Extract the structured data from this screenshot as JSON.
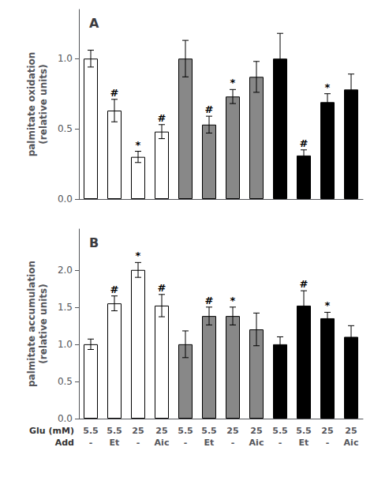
{
  "chart_data": [
    {
      "type": "bar",
      "title": "A",
      "ylabel": "palmitate oxidation\n(relative units)",
      "values": [
        1.0,
        0.63,
        0.3,
        0.48,
        1.0,
        0.53,
        0.73,
        0.87,
        1.0,
        0.31,
        0.69,
        0.78
      ],
      "errors": [
        0.06,
        0.08,
        0.04,
        0.05,
        0.13,
        0.06,
        0.05,
        0.11,
        0.18,
        0.04,
        0.06,
        0.11
      ],
      "annotations": [
        null,
        "#",
        "*",
        "#",
        null,
        "#",
        "*",
        null,
        null,
        "#",
        "*",
        null
      ],
      "colors": [
        "white",
        "white",
        "white",
        "white",
        "#888888",
        "#888888",
        "#888888",
        "#888888",
        "black",
        "black",
        "black",
        "black"
      ],
      "ylim": [
        0.0,
        1.35
      ],
      "yticks": [
        {
          "value": 0.0,
          "label": "0.0"
        },
        {
          "value": 0.5,
          "label": "0.5"
        },
        {
          "value": 1.0,
          "label": "1.0"
        }
      ],
      "grid": false,
      "tick_labels": "y"
    },
    {
      "type": "bar",
      "title": "B",
      "ylabel": "palmitate accumulation\n(relative units)",
      "values": [
        1.0,
        1.55,
        2.0,
        1.52,
        1.0,
        1.38,
        1.38,
        1.2,
        1.0,
        1.52,
        1.35,
        1.1
      ],
      "errors": [
        0.07,
        0.1,
        0.1,
        0.15,
        0.18,
        0.12,
        0.12,
        0.22,
        0.1,
        0.2,
        0.08,
        0.15
      ],
      "annotations": [
        null,
        "#",
        "*",
        "#",
        null,
        "#",
        "*",
        null,
        null,
        "#",
        "*",
        null
      ],
      "colors": [
        "white",
        "white",
        "white",
        "white",
        "#888888",
        "#888888",
        "#888888",
        "#888888",
        "black",
        "black",
        "black",
        "black"
      ],
      "ylim": [
        0.0,
        2.55
      ],
      "yticks": [
        {
          "value": 0.0,
          "label": "0.0"
        },
        {
          "value": 0.5,
          "label": "0.5"
        },
        {
          "value": 1.0,
          "label": "1.0"
        },
        {
          "value": 1.5,
          "label": "1.5"
        },
        {
          "value": 2.0,
          "label": "2.0"
        }
      ],
      "grid": false,
      "x_label_rows": [
        {
          "label": "Glu (mM)",
          "values": [
            "5.5",
            "5.5",
            "25",
            "25",
            "5.5",
            "5.5",
            "25",
            "25",
            "5.5",
            "5.5",
            "25",
            "25"
          ]
        },
        {
          "label": "Add",
          "values": [
            "-",
            "Et",
            "-",
            "Aic",
            "-",
            "Et",
            "-",
            "Aic",
            "-",
            "Et",
            "-",
            "Aic"
          ]
        }
      ]
    }
  ]
}
